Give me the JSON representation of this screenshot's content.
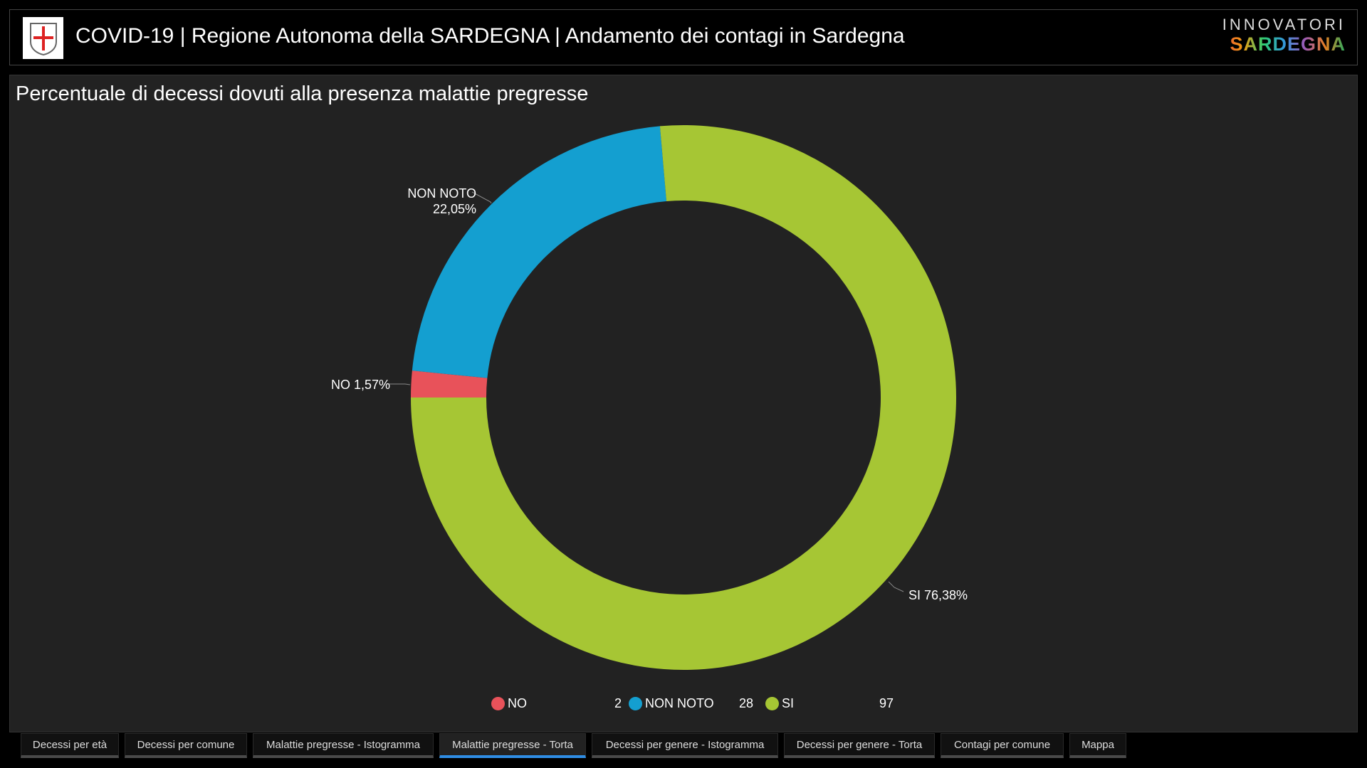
{
  "header": {
    "title": "COVID-19 | Regione Autonoma della SARDEGNA | Andamento dei contagi in Sardegna",
    "brand_top": "INNOVATORI",
    "brand_bottom": "SARDEGNA"
  },
  "chart_data": {
    "type": "pie",
    "title": "Percentuale di decessi dovuti alla presenza malattie pregresse",
    "donut": true,
    "categories": [
      "NO",
      "NON NOTO",
      "SI"
    ],
    "values": [
      2,
      28,
      97
    ],
    "percent_labels": [
      "NO 1,57%",
      "NON NOTO",
      "22,05%",
      "SI 76,38%"
    ],
    "percentages": [
      1.57,
      22.05,
      76.38
    ],
    "colors": [
      "#e8525a",
      "#149fd0",
      "#a6c634"
    ],
    "legend": [
      {
        "label": "NO",
        "value": "2"
      },
      {
        "label": "NON NOTO",
        "value": "28"
      },
      {
        "label": "SI",
        "value": "97"
      }
    ],
    "legend_position": "bottom"
  },
  "tabs": [
    {
      "label": "Decessi per età"
    },
    {
      "label": "Decessi per comune"
    },
    {
      "label": "Malattie pregresse - Istogramma"
    },
    {
      "label": "Malattie pregresse - Torta",
      "active": true
    },
    {
      "label": "Decessi per genere - Istogramma"
    },
    {
      "label": "Decessi per genere - Torta"
    },
    {
      "label": "Contagi per comune"
    },
    {
      "label": "Mappa"
    }
  ]
}
